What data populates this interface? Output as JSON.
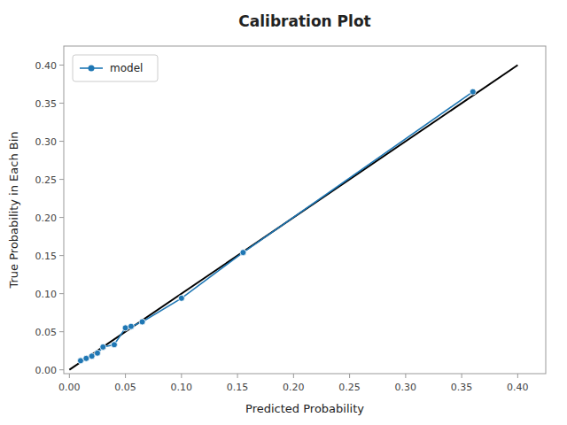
{
  "chart_data": {
    "type": "line",
    "title": "Calibration Plot",
    "x_label": "Predicted Probability",
    "y_label": "True Probability in Each Bin",
    "series": [
      {
        "color": "black",
        "x": [
          0.0,
          0.4
        ],
        "values": [
          0.0,
          0.4
        ]
      },
      {
        "name": "model",
        "color": "#1f77b4",
        "marker": "circle",
        "x": [
          0.01,
          0.015,
          0.02,
          0.025,
          0.03,
          0.04,
          0.05,
          0.055,
          0.065,
          0.1,
          0.155,
          0.36
        ],
        "values": [
          0.012,
          0.015,
          0.018,
          0.022,
          0.03,
          0.033,
          0.055,
          0.057,
          0.063,
          0.094,
          0.154,
          0.365
        ]
      }
    ],
    "xlim": [
      -0.005,
      0.425
    ],
    "ylim": [
      -0.005,
      0.425
    ],
    "xticks": [
      {
        "value": 0.0,
        "label": "0.00"
      },
      0.05,
      {
        "value": 0.1,
        "label": "0.10"
      },
      0.15,
      {
        "value": 0.2,
        "label": "0.20"
      },
      0.25,
      {
        "value": 0.3,
        "label": "0.30"
      },
      0.35,
      {
        "value": 0.4,
        "label": "0.40"
      }
    ],
    "yticks": [
      {
        "value": 0.0,
        "label": "0.00"
      },
      0.05,
      {
        "value": 0.1,
        "label": "0.10"
      },
      0.15,
      {
        "value": 0.2,
        "label": "0.20"
      },
      0.25,
      {
        "value": 0.3,
        "label": "0.30"
      },
      0.35,
      {
        "value": 0.4,
        "label": "0.40"
      }
    ],
    "grid": false,
    "legend": "upper left"
  }
}
